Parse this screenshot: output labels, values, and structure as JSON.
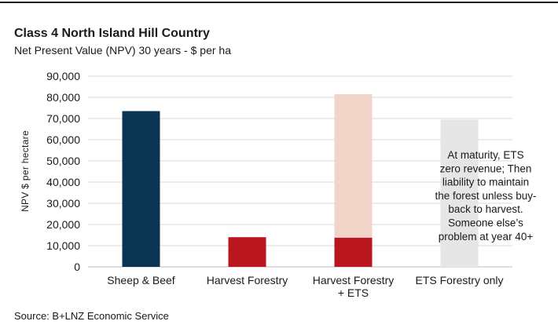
{
  "chart_data": {
    "type": "bar",
    "stacked": true,
    "title": "Class 4 North Island Hill Country",
    "subtitle": "Net Present Value (NPV) 30 years - $ per ha",
    "ylabel": "NPV $ per hectare",
    "xlabel": "",
    "ylim": [
      0,
      90000
    ],
    "yticks": [
      "0",
      "10,000",
      "20,000",
      "30,000",
      "40,000",
      "50,000",
      "60,000",
      "70,000",
      "80,000",
      "90,000"
    ],
    "grid": true,
    "categories": [
      [
        "Sheep & Beef"
      ],
      [
        "Harvest Forestry"
      ],
      [
        "Harvest Forestry",
        "+ ETS"
      ],
      [
        "ETS Forestry only"
      ]
    ],
    "series": [
      {
        "color": "#0b3553",
        "values": [
          73500,
          0,
          0,
          0
        ]
      },
      {
        "color": "#b9161f",
        "values": [
          0,
          14000,
          13800,
          0
        ]
      },
      {
        "color": "#f2d3c8",
        "values": [
          0,
          0,
          67700,
          0
        ]
      },
      {
        "color": "#e6e6e6",
        "values": [
          0,
          0,
          0,
          69500
        ]
      }
    ],
    "annotation": {
      "lines": [
        "At maturity, ETS",
        "zero revenue; Then",
        "liability to maintain",
        "the forest unless buy-",
        "back to harvest.",
        "Someone else’s",
        "problem at year 40+"
      ]
    }
  },
  "source": "Source: B+LNZ Economic Service"
}
